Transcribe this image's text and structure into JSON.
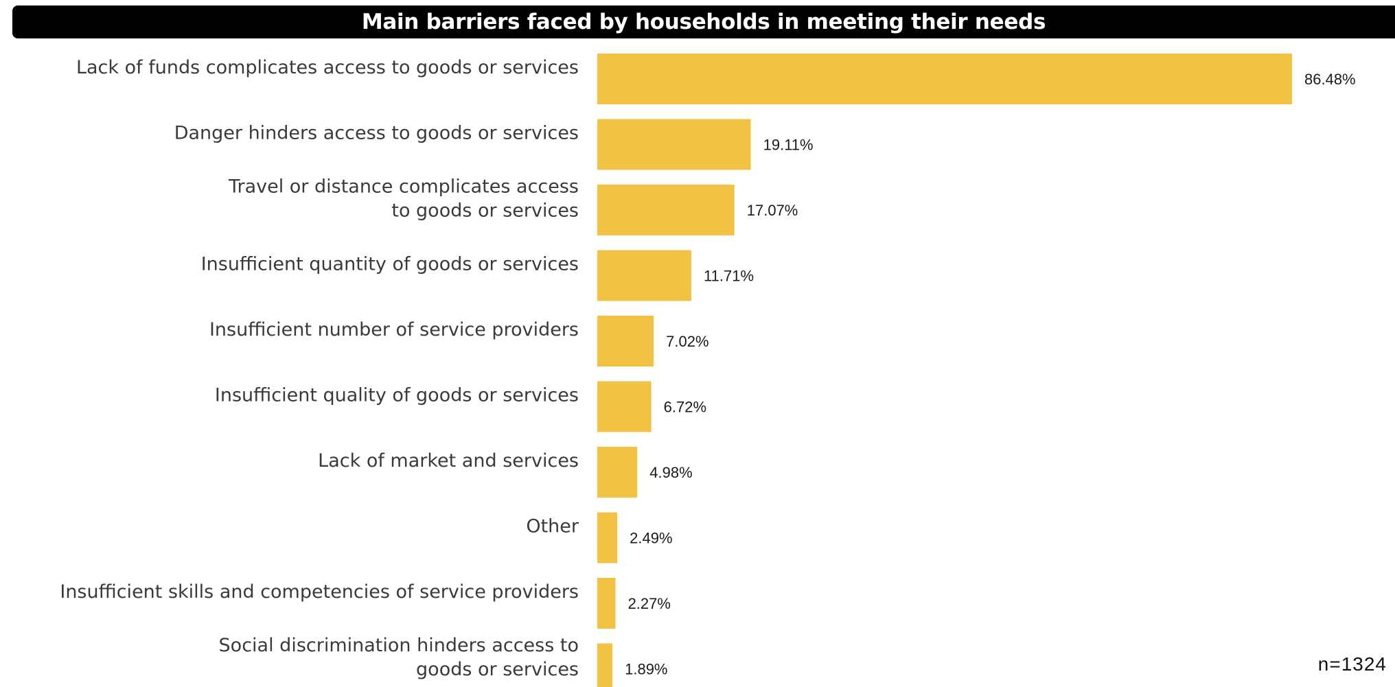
{
  "chart_data": {
    "type": "bar",
    "orientation": "horizontal",
    "title": "Main barriers faced by households in meeting their needs",
    "categories": [
      [
        "Lack of funds complicates access to goods or services"
      ],
      [
        "Danger hinders access to goods or services"
      ],
      [
        "Travel or distance complicates access",
        "to goods or services"
      ],
      [
        "Insufficient quantity of goods or services"
      ],
      [
        "Insufficient number of service providers"
      ],
      [
        "Insufficient quality of goods or services"
      ],
      [
        "Lack of market and services"
      ],
      [
        "Other"
      ],
      [
        "Insufficient skills and competencies of service providers"
      ],
      [
        "Social discrimination hinders access to",
        "goods or services"
      ]
    ],
    "values": [
      86.48,
      19.11,
      17.07,
      11.71,
      7.02,
      6.72,
      4.98,
      2.49,
      2.27,
      1.89
    ],
    "value_labels": [
      "86.48%",
      "19.11%",
      "17.07%",
      "11.71%",
      "7.02%",
      "6.72%",
      "4.98%",
      "2.49%",
      "2.27%",
      "1.89%"
    ],
    "xlim": [
      0,
      100
    ],
    "grid": false,
    "legend": "none",
    "bar_color": "#F2C244",
    "sample_size": "n=1324"
  }
}
